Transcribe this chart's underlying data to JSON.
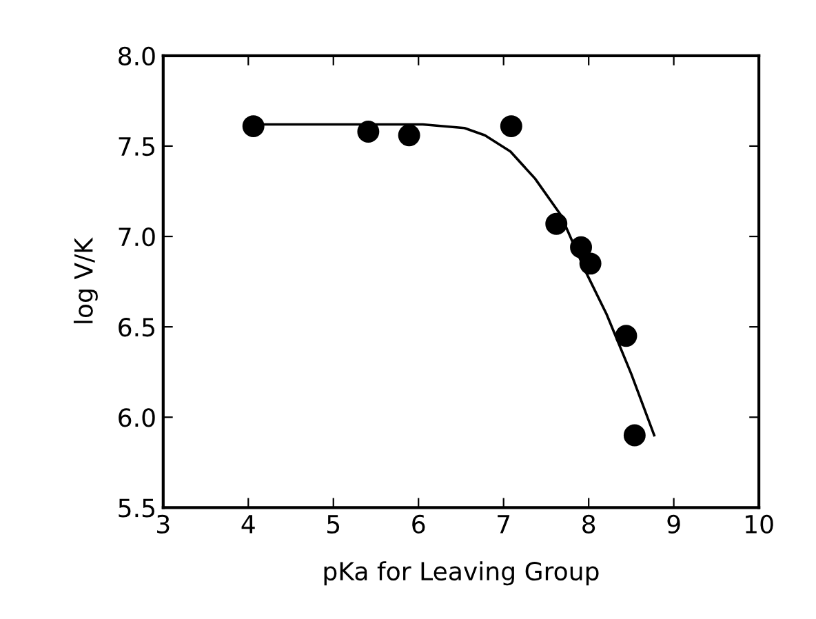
{
  "chart_data": {
    "type": "scatter",
    "xlabel": "pKa for Leaving Group",
    "ylabel": "log V/K",
    "xlim": [
      3,
      10
    ],
    "xticks": [
      3,
      4,
      5,
      6,
      7,
      8,
      9,
      10
    ],
    "ylim": [
      5.5,
      8.0
    ],
    "yticks": [
      {
        "value": 5.5,
        "label": "5.5"
      },
      {
        "value": 6.0,
        "label": "6.0"
      },
      {
        "value": 6.5,
        "label": "6.5"
      },
      {
        "value": 7.0,
        "label": "7.0"
      },
      {
        "value": 7.5,
        "label": "7.5"
      },
      {
        "value": 8.0,
        "label": "8.0"
      }
    ],
    "grid": false,
    "series": [
      {
        "marker": "circle",
        "color": "#000000",
        "x": [
          4.06,
          5.41,
          5.89,
          7.09,
          7.62,
          7.91,
          8.02,
          8.44,
          8.54
        ],
        "values": [
          7.61,
          7.58,
          7.56,
          7.61,
          7.07,
          6.94,
          6.85,
          6.45,
          5.9
        ]
      },
      {
        "type": "line",
        "marker": "none",
        "color": "#000000",
        "line_style": "solid",
        "x": [
          4.06,
          6.05,
          6.54,
          6.78,
          7.08,
          7.37,
          7.67,
          7.96,
          8.21,
          8.5,
          8.77
        ],
        "values": [
          7.62,
          7.62,
          7.6,
          7.56,
          7.47,
          7.32,
          7.12,
          6.81,
          6.57,
          6.24,
          5.9
        ]
      }
    ]
  }
}
